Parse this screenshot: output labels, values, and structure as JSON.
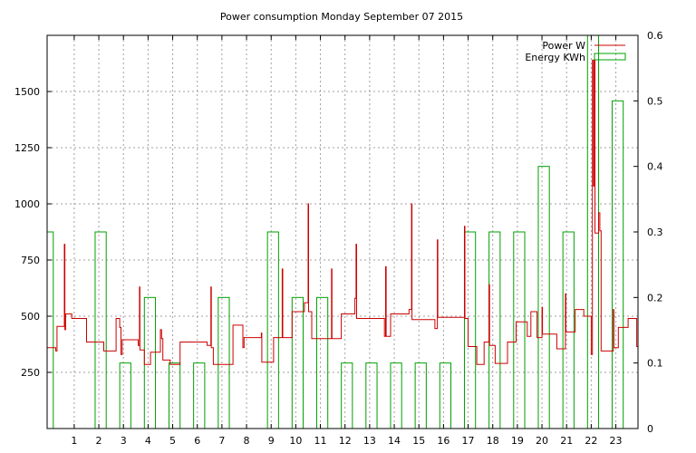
{
  "chart_data": {
    "type": "line",
    "title": "Power consumption Monday September 07 2015",
    "legend": {
      "placement": "top-right",
      "entries": [
        "Power W",
        "Energy KWh"
      ]
    },
    "colors": {
      "power": "#cc0000",
      "energy": "#00a000",
      "grid": "#a0a0a0"
    },
    "grid": true,
    "x_axis": {
      "range": [
        -0.1,
        23.9
      ],
      "ticks": [
        1,
        2,
        3,
        4,
        5,
        6,
        7,
        8,
        9,
        10,
        11,
        12,
        13,
        14,
        15,
        16,
        17,
        18,
        19,
        20,
        21,
        22,
        23
      ],
      "tick_labels": [
        "1",
        "2",
        "3",
        "4",
        "5",
        "6",
        "7",
        "8",
        "9",
        "10",
        "11",
        "12",
        "13",
        "14",
        "15",
        "16",
        "17",
        "18",
        "19",
        "20",
        "21",
        "22",
        "23"
      ]
    },
    "y_axis_left": {
      "range": [
        0,
        1750
      ],
      "ticks": [
        250,
        500,
        750,
        1000,
        1250,
        1500
      ],
      "tick_labels": [
        "250",
        "500",
        "750",
        "1000",
        "1250",
        "1500"
      ]
    },
    "y_axis_right": {
      "range": [
        0,
        0.6
      ],
      "ticks": [
        0,
        0.1,
        0.2,
        0.3,
        0.4,
        0.5,
        0.6
      ],
      "tick_labels": [
        "0",
        "0.1",
        "0.2",
        "0.3",
        "0.4",
        "0.5",
        "0.6"
      ]
    },
    "series": [
      {
        "name": "Power W",
        "axis": "left",
        "style": "step",
        "points": [
          [
            -0.1,
            360
          ],
          [
            0.25,
            360
          ],
          [
            0.25,
            345
          ],
          [
            0.3,
            345
          ],
          [
            0.3,
            455
          ],
          [
            0.6,
            455
          ],
          [
            0.6,
            820
          ],
          [
            0.62,
            820
          ],
          [
            0.62,
            440
          ],
          [
            0.65,
            440
          ],
          [
            0.65,
            510
          ],
          [
            0.9,
            510
          ],
          [
            0.9,
            490
          ],
          [
            1.5,
            490
          ],
          [
            1.5,
            385
          ],
          [
            2.2,
            385
          ],
          [
            2.2,
            345
          ],
          [
            2.7,
            345
          ],
          [
            2.7,
            490
          ],
          [
            2.85,
            490
          ],
          [
            2.85,
            450
          ],
          [
            2.9,
            450
          ],
          [
            2.9,
            330
          ],
          [
            2.95,
            330
          ],
          [
            2.95,
            395
          ],
          [
            3.6,
            395
          ],
          [
            3.6,
            370
          ],
          [
            3.65,
            370
          ],
          [
            3.65,
            630
          ],
          [
            3.67,
            630
          ],
          [
            3.67,
            350
          ],
          [
            3.85,
            350
          ],
          [
            3.85,
            285
          ],
          [
            4.1,
            285
          ],
          [
            4.1,
            340
          ],
          [
            4.5,
            340
          ],
          [
            4.5,
            440
          ],
          [
            4.55,
            440
          ],
          [
            4.55,
            400
          ],
          [
            4.6,
            400
          ],
          [
            4.6,
            305
          ],
          [
            4.9,
            305
          ],
          [
            4.9,
            285
          ],
          [
            5.3,
            285
          ],
          [
            5.3,
            385
          ],
          [
            6.4,
            385
          ],
          [
            6.4,
            370
          ],
          [
            6.55,
            370
          ],
          [
            6.55,
            630
          ],
          [
            6.57,
            630
          ],
          [
            6.57,
            360
          ],
          [
            6.65,
            360
          ],
          [
            6.65,
            285
          ],
          [
            7.45,
            285
          ],
          [
            7.45,
            460
          ],
          [
            7.85,
            460
          ],
          [
            7.85,
            360
          ],
          [
            7.9,
            360
          ],
          [
            7.9,
            405
          ],
          [
            8.6,
            405
          ],
          [
            8.6,
            425
          ],
          [
            8.62,
            425
          ],
          [
            8.62,
            295
          ],
          [
            9.1,
            295
          ],
          [
            9.1,
            405
          ],
          [
            9.45,
            405
          ],
          [
            9.45,
            710
          ],
          [
            9.47,
            710
          ],
          [
            9.47,
            405
          ],
          [
            9.85,
            405
          ],
          [
            9.85,
            520
          ],
          [
            10.35,
            520
          ],
          [
            10.35,
            560
          ],
          [
            10.5,
            560
          ],
          [
            10.5,
            1000
          ],
          [
            10.52,
            1000
          ],
          [
            10.52,
            520
          ],
          [
            10.65,
            520
          ],
          [
            10.65,
            400
          ],
          [
            11.45,
            400
          ],
          [
            11.45,
            710
          ],
          [
            11.47,
            710
          ],
          [
            11.47,
            400
          ],
          [
            11.85,
            400
          ],
          [
            11.85,
            510
          ],
          [
            12.4,
            510
          ],
          [
            12.4,
            580
          ],
          [
            12.45,
            580
          ],
          [
            12.45,
            820
          ],
          [
            12.47,
            820
          ],
          [
            12.47,
            490
          ],
          [
            13.6,
            490
          ],
          [
            13.6,
            410
          ],
          [
            13.65,
            410
          ],
          [
            13.65,
            720
          ],
          [
            13.67,
            720
          ],
          [
            13.67,
            410
          ],
          [
            13.85,
            410
          ],
          [
            13.85,
            510
          ],
          [
            14.6,
            510
          ],
          [
            14.6,
            530
          ],
          [
            14.7,
            530
          ],
          [
            14.7,
            1000
          ],
          [
            14.72,
            1000
          ],
          [
            14.72,
            485
          ],
          [
            15.65,
            485
          ],
          [
            15.65,
            445
          ],
          [
            15.75,
            445
          ],
          [
            15.75,
            840
          ],
          [
            15.77,
            840
          ],
          [
            15.77,
            495
          ],
          [
            16.85,
            495
          ],
          [
            16.85,
            900
          ],
          [
            16.87,
            900
          ],
          [
            16.87,
            490
          ],
          [
            17.0,
            490
          ],
          [
            17.0,
            365
          ],
          [
            17.35,
            365
          ],
          [
            17.35,
            285
          ],
          [
            17.65,
            285
          ],
          [
            17.65,
            385
          ],
          [
            17.85,
            385
          ],
          [
            17.85,
            640
          ],
          [
            17.87,
            640
          ],
          [
            17.87,
            370
          ],
          [
            18.1,
            370
          ],
          [
            18.1,
            290
          ],
          [
            18.6,
            290
          ],
          [
            18.6,
            385
          ],
          [
            18.95,
            385
          ],
          [
            18.95,
            475
          ],
          [
            19.4,
            475
          ],
          [
            19.4,
            410
          ],
          [
            19.55,
            410
          ],
          [
            19.55,
            520
          ],
          [
            19.8,
            520
          ],
          [
            19.8,
            405
          ],
          [
            20.0,
            405
          ],
          [
            20.0,
            540
          ],
          [
            20.02,
            540
          ],
          [
            20.02,
            420
          ],
          [
            20.6,
            420
          ],
          [
            20.6,
            355
          ],
          [
            20.95,
            355
          ],
          [
            20.95,
            600
          ],
          [
            20.97,
            600
          ],
          [
            20.97,
            430
          ],
          [
            21.35,
            430
          ],
          [
            21.35,
            530
          ],
          [
            21.7,
            530
          ],
          [
            21.7,
            500
          ],
          [
            22.0,
            500
          ],
          [
            22.0,
            330
          ],
          [
            22.05,
            330
          ],
          [
            22.05,
            1640
          ],
          [
            22.07,
            1640
          ],
          [
            22.07,
            1080
          ],
          [
            22.12,
            1080
          ],
          [
            22.12,
            1640
          ],
          [
            22.15,
            1640
          ],
          [
            22.15,
            870
          ],
          [
            22.3,
            870
          ],
          [
            22.3,
            960
          ],
          [
            22.35,
            960
          ],
          [
            22.35,
            880
          ],
          [
            22.4,
            880
          ],
          [
            22.4,
            345
          ],
          [
            22.9,
            345
          ],
          [
            22.9,
            530
          ],
          [
            22.92,
            530
          ],
          [
            22.92,
            360
          ],
          [
            23.1,
            360
          ],
          [
            23.1,
            450
          ],
          [
            23.5,
            450
          ],
          [
            23.5,
            490
          ],
          [
            23.85,
            490
          ],
          [
            23.85,
            365
          ],
          [
            23.9,
            365
          ]
        ]
      },
      {
        "name": "Energy KWh",
        "axis": "right",
        "style": "bars",
        "bars": [
          {
            "x0": -0.1,
            "x1": 0.15,
            "value": 0.3
          },
          {
            "x0": 1.85,
            "x1": 2.3,
            "value": 0.3
          },
          {
            "x0": 2.85,
            "x1": 3.3,
            "value": 0.1
          },
          {
            "x0": 3.85,
            "x1": 4.3,
            "value": 0.2
          },
          {
            "x0": 4.85,
            "x1": 5.3,
            "value": 0.1
          },
          {
            "x0": 5.85,
            "x1": 6.3,
            "value": 0.1
          },
          {
            "x0": 6.85,
            "x1": 7.3,
            "value": 0.2
          },
          {
            "x0": 8.85,
            "x1": 9.3,
            "value": 0.3
          },
          {
            "x0": 9.85,
            "x1": 10.3,
            "value": 0.2
          },
          {
            "x0": 10.85,
            "x1": 11.3,
            "value": 0.2
          },
          {
            "x0": 11.85,
            "x1": 12.3,
            "value": 0.1
          },
          {
            "x0": 12.85,
            "x1": 13.3,
            "value": 0.1
          },
          {
            "x0": 13.85,
            "x1": 14.3,
            "value": 0.1
          },
          {
            "x0": 14.85,
            "x1": 15.3,
            "value": 0.1
          },
          {
            "x0": 15.85,
            "x1": 16.3,
            "value": 0.1
          },
          {
            "x0": 16.85,
            "x1": 17.3,
            "value": 0.3
          },
          {
            "x0": 17.85,
            "x1": 18.3,
            "value": 0.3
          },
          {
            "x0": 18.85,
            "x1": 19.3,
            "value": 0.3
          },
          {
            "x0": 19.85,
            "x1": 20.3,
            "value": 0.4
          },
          {
            "x0": 20.85,
            "x1": 21.3,
            "value": 0.3
          },
          {
            "x0": 21.85,
            "x1": 22.3,
            "value": 0.6
          },
          {
            "x0": 22.85,
            "x1": 23.3,
            "value": 0.5
          }
        ]
      }
    ]
  }
}
